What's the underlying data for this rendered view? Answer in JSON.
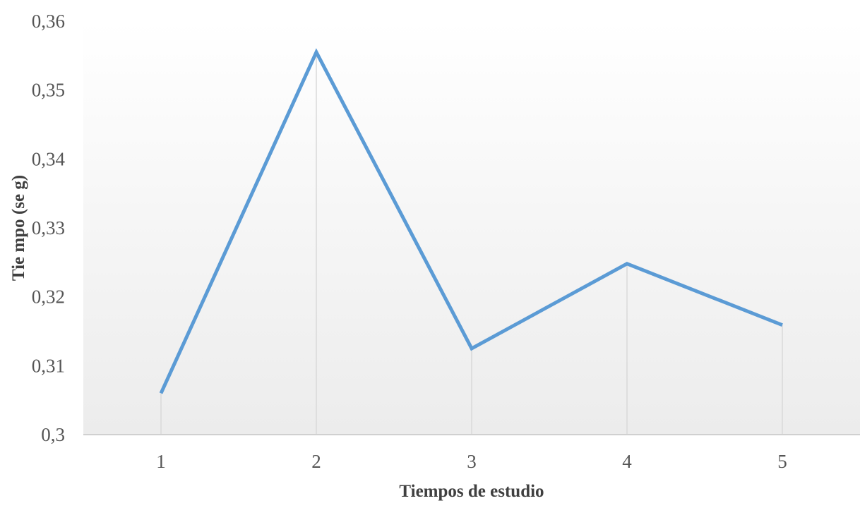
{
  "chart_data": {
    "type": "line",
    "title": "",
    "xlabel": "Tiempos de estudio",
    "ylabel": "Tie mpo (se g)",
    "categories": [
      "1",
      "2",
      "3",
      "4",
      "5"
    ],
    "series": [
      {
        "values": [
          0.306,
          0.3555,
          0.3125,
          0.3248,
          0.3159
        ]
      }
    ],
    "ylim": [
      0.3,
      0.36
    ],
    "yticks": [
      0.3,
      0.31,
      0.32,
      0.33,
      0.34,
      0.35,
      0.36
    ],
    "ytick_labels": [
      "0,3",
      "0,31",
      "0,32",
      "0,33",
      "0,34",
      "0,35",
      "0,36"
    ],
    "grid": false,
    "drop_lines": true,
    "legend": "none",
    "colors": {
      "line": "#5b9bd5",
      "drop_line": "#d9d9d9",
      "axis": "#d0d0d0",
      "plot_bg_top": "#ffffff",
      "plot_bg_bottom": "#ececec"
    }
  }
}
